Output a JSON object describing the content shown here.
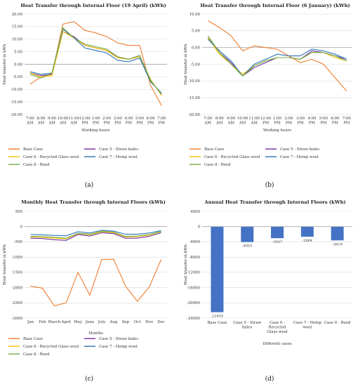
{
  "chart_data": [
    {
      "type": "line",
      "title": "Heat Transfer through Internal Floor (19 April) (kWh)",
      "xlabel": "Working hours",
      "ylabel": "Heat transfer in kWh",
      "caption": "(a)",
      "ylim": [
        -20,
        20
      ],
      "yticks": [
        "20.00",
        "15.00",
        "10.00",
        "5.00",
        "0.00",
        "-5.00",
        "-10.00",
        "-15.00",
        "-20.00"
      ],
      "categories": [
        "7:00 AM",
        "8:00 AM",
        "9:00 AM",
        "10:00 AM",
        "11:00 AM",
        "12:00 PM",
        "1:00 PM",
        "2:00 PM",
        "3:00 PM",
        "4:00 PM",
        "5:00 PM",
        "6:00 PM",
        "7:00 PM"
      ],
      "series": [
        {
          "name": "Base Case",
          "color": "#ed7d31",
          "values": [
            -8,
            -5,
            -4,
            16,
            17,
            13.5,
            12.5,
            11,
            8.5,
            7.5,
            7.5,
            -8.5,
            -16.5
          ]
        },
        {
          "name": "Case 5 - Straw bales",
          "color": "#7030a0",
          "values": [
            -3.5,
            -4.5,
            -4,
            13,
            11,
            7.5,
            6.5,
            5.5,
            3,
            2,
            3.5,
            -6.5,
            -12
          ]
        },
        {
          "name": "Case 6 - Recycled Glass wool",
          "color": "#ffc000",
          "values": [
            -3.5,
            -5,
            -4.5,
            13,
            10.5,
            7.5,
            6.5,
            5.5,
            2.5,
            2,
            3,
            -6,
            -12.5
          ]
        },
        {
          "name": "Case 7 - Hemp wool",
          "color": "#2e75b6",
          "values": [
            -3,
            -4,
            -3.5,
            14,
            10.5,
            6.5,
            5.5,
            4.5,
            1.5,
            1,
            2.5,
            -7,
            -11.5
          ]
        },
        {
          "name": "Case 8 - Reed",
          "color": "#70ad47",
          "values": [
            -4,
            -5.5,
            -3.5,
            14.5,
            10.5,
            8,
            7,
            6,
            3,
            2,
            3.5,
            -6.5,
            -12
          ]
        }
      ],
      "legend_position": "bottom"
    },
    {
      "type": "line",
      "title": "Heat Transfer through Internal Floor (6 January) (kWh)",
      "xlabel": "Working hours",
      "ylabel": "Heat transfer in kWh",
      "caption": "(b)",
      "ylim": [
        -20,
        10
      ],
      "yticks": [
        "10.00",
        "5.00",
        "0.00",
        "-5.00",
        "-10.00",
        "-15.00",
        "-20.00"
      ],
      "categories": [
        "7:00 AM",
        "8:00 AM",
        "9:00 AM",
        "10:00 AM",
        "11:00 AM",
        "12:00 PM",
        "1:00 PM",
        "2:00 PM",
        "3:00 PM",
        "4:00 PM",
        "5:00 PM",
        "6:00 PM",
        "7:00 PM"
      ],
      "series": [
        {
          "name": "Base Case",
          "color": "#ed7d31",
          "values": [
            8,
            6,
            3.5,
            -1,
            0.5,
            0,
            -0.5,
            -2.5,
            -4.5,
            -3.5,
            -5,
            -9,
            -13
          ]
        },
        {
          "name": "Case 5 - Straw bales",
          "color": "#7030a0",
          "values": [
            3,
            -1.5,
            -4.5,
            -8.5,
            -6,
            -4.5,
            -3,
            -3,
            -3.5,
            -1,
            -1.5,
            -2.5,
            -3.5
          ]
        },
        {
          "name": "Case 6 - Recycled Glass wool",
          "color": "#ffc000",
          "values": [
            3,
            -2,
            -5,
            -8,
            -5.5,
            -4,
            -3,
            -3,
            -3.5,
            -1.5,
            -1.5,
            -3,
            -4
          ]
        },
        {
          "name": "Case 7 - Hemp wool",
          "color": "#2e75b6",
          "values": [
            2.5,
            -1,
            -4,
            -8.5,
            -5,
            -3.5,
            -2,
            -2.5,
            -2.5,
            -0.5,
            -1,
            -2,
            -3.5
          ]
        },
        {
          "name": "Case 8 - Reed",
          "color": "#70ad47",
          "values": [
            3.5,
            -1.5,
            -5,
            -8.5,
            -5.5,
            -4,
            -3,
            -3,
            -3.5,
            -1.5,
            -1.5,
            -2.5,
            -4
          ]
        }
      ],
      "legend_position": "bottom"
    },
    {
      "type": "line",
      "title": "Monthly Heat Transfer through Internal Floors (kWh)",
      "xlabel": "Months",
      "ylabel": "Heat transfer in kWh",
      "caption": "(c)",
      "ylim": [
        -3000,
        500
      ],
      "yticks": [
        "500",
        "0",
        "-500",
        "-1000",
        "-1500",
        "-2000",
        "-2500",
        "-3000"
      ],
      "categories": [
        "Jan",
        "Feb",
        "March",
        "April",
        "May",
        "June",
        "July",
        "Aug",
        "Sep",
        "Oct",
        "Nov",
        "Dec"
      ],
      "series": [
        {
          "name": "Base Case",
          "color": "#ed7d31",
          "values": [
            -1950,
            -2020,
            -2600,
            -2500,
            -1500,
            -2250,
            -1080,
            -1070,
            -1950,
            -2450,
            -1980,
            -1080
          ]
        },
        {
          "name": "Case 5 - Straw bales",
          "color": "#7030a0",
          "values": [
            -380,
            -390,
            -430,
            -450,
            -260,
            -310,
            -200,
            -230,
            -380,
            -380,
            -320,
            -200
          ]
        },
        {
          "name": "Case 6 - Recycled Glass wool",
          "color": "#ffc000",
          "values": [
            -340,
            -350,
            -380,
            -400,
            -230,
            -270,
            -170,
            -200,
            -340,
            -330,
            -280,
            -170
          ]
        },
        {
          "name": "Case 7 - Hemp wool",
          "color": "#2e75b6",
          "values": [
            -260,
            -270,
            -290,
            -300,
            -170,
            -210,
            -120,
            -150,
            -250,
            -250,
            -210,
            -130
          ]
        },
        {
          "name": "Case 8 - Reed",
          "color": "#70ad47",
          "values": [
            -320,
            -330,
            -350,
            -380,
            -220,
            -250,
            -150,
            -180,
            -320,
            -310,
            -260,
            -160
          ]
        }
      ],
      "legend_position": "bottom"
    },
    {
      "type": "bar",
      "title": "Annual Heat Transfer through Internal Floors (kWh)",
      "xlabel": "Different cases",
      "ylabel": "Heat transfer in kWh",
      "caption": "(d)",
      "ylim": [
        -24000,
        4000
      ],
      "yticks": [
        "4000",
        "0",
        "-4000",
        "-8000",
        "-12000",
        "-16000",
        "-20000",
        "-24000"
      ],
      "categories": [
        "Base Case",
        "Case 5 - Straw bales",
        "Case 6 - Recycled Glass wool",
        "Case 7 - Hemp wool",
        "Case 8 - Reed"
      ],
      "values": [
        -22455,
        -4053,
        -3037,
        -2664,
        -3619
      ],
      "data_labels": [
        "-22455",
        "-4053",
        "-3037",
        "-2664",
        "-3619"
      ],
      "bar_color": "#4472c4"
    }
  ]
}
